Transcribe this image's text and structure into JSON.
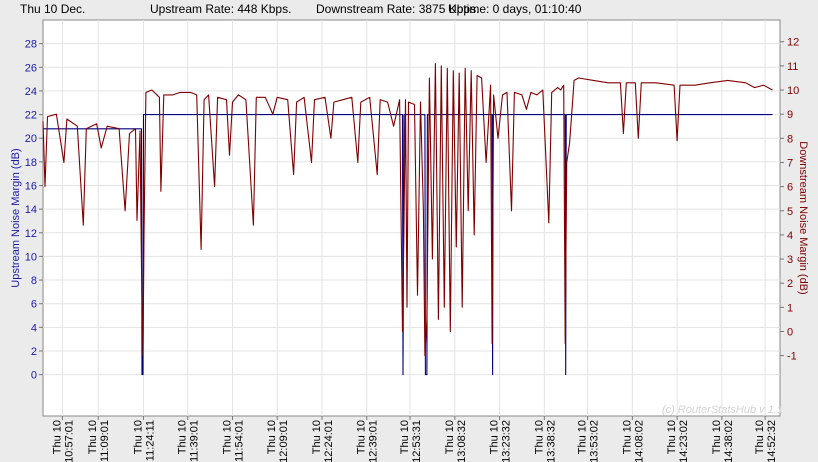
{
  "header": {
    "date": "Thu 10 Dec.",
    "upstream": "Upstream Rate: 448 Kbps.",
    "downstream": "Downstream Rate: 3875 Kbps.",
    "uptime": "Uptime: 0 days, 01:10:40"
  },
  "watermark": "(c) RouterStatsHub v 1.1",
  "colors": {
    "upstream": "#000080",
    "downstream": "#800000",
    "axis_left": "#1a1aa8",
    "axis_right": "#800000"
  },
  "chart_data": {
    "type": "line",
    "ylabel_left": "Upstream Noise Margin (dB)",
    "ylabel_right": "Downstream Noise Margin (dB)",
    "ylim_left": [
      -3.5,
      30
    ],
    "yticks_left": [
      0,
      2,
      4,
      6,
      8,
      10,
      12,
      14,
      16,
      18,
      20,
      22,
      24,
      26,
      28
    ],
    "ylim_right": [
      -3.5,
      12.9
    ],
    "yticks_right": [
      -1,
      0,
      1,
      2,
      3,
      4,
      5,
      6,
      7,
      8,
      9,
      10,
      11,
      12
    ],
    "xlim": [
      "10:50:31",
      "14:57:31"
    ],
    "x_ticks": [
      {
        "day": "Thu 10",
        "time": "10:57:01"
      },
      {
        "day": "Thu 10",
        "time": "11:09:01"
      },
      {
        "day": "Thu 10",
        "time": "11:24:11"
      },
      {
        "day": "Thu 10",
        "time": "11:39:01"
      },
      {
        "day": "Thu 10",
        "time": "11:54:01"
      },
      {
        "day": "Thu 10",
        "time": "12:09:01"
      },
      {
        "day": "Thu 10",
        "time": "12:24:01"
      },
      {
        "day": "Thu 10",
        "time": "12:39:01"
      },
      {
        "day": "Thu 10",
        "time": "12:53:31"
      },
      {
        "day": "Thu 10",
        "time": "13:08:32"
      },
      {
        "day": "Thu 10",
        "time": "13:23:32"
      },
      {
        "day": "Thu 10",
        "time": "13:38:32"
      },
      {
        "day": "Thu 10",
        "time": "13:53:02"
      },
      {
        "day": "Thu 10",
        "time": "14:08:02"
      },
      {
        "day": "Thu 10",
        "time": "14:23:02"
      },
      {
        "day": "Thu 10",
        "time": "14:38:02"
      },
      {
        "day": "Thu 10",
        "time": "14:52:32"
      }
    ],
    "series": [
      {
        "name": "Upstream Noise Margin",
        "axis": "left",
        "points": [
          [
            "10:50:31",
            20.8
          ],
          [
            "11:23:31",
            20.8
          ],
          [
            "11:23:41",
            0
          ],
          [
            "11:24:01",
            0
          ],
          [
            "11:24:11",
            22
          ],
          [
            "12:51:01",
            22
          ],
          [
            "12:51:11",
            0
          ],
          [
            "12:51:31",
            22
          ],
          [
            "12:58:31",
            22
          ],
          [
            "12:58:41",
            0
          ],
          [
            "12:59:11",
            0
          ],
          [
            "12:59:21",
            22
          ],
          [
            "13:21:01",
            22
          ],
          [
            "13:21:11",
            0
          ],
          [
            "13:21:21",
            22
          ],
          [
            "13:45:31",
            22
          ],
          [
            "13:45:41",
            0
          ],
          [
            "13:45:51",
            22
          ],
          [
            "14:55:01",
            22
          ]
        ]
      },
      {
        "name": "Downstream Noise Margin",
        "axis": "right",
        "points": [
          [
            "10:50:31",
            8.7
          ],
          [
            "10:51:11",
            6.0
          ],
          [
            "10:52:01",
            8.9
          ],
          [
            "10:55:01",
            9.0
          ],
          [
            "10:57:31",
            7.0
          ],
          [
            "10:58:31",
            8.8
          ],
          [
            "11:02:01",
            8.5
          ],
          [
            "11:04:01",
            4.4
          ],
          [
            "11:05:01",
            8.4
          ],
          [
            "11:08:31",
            8.6
          ],
          [
            "11:10:01",
            7.6
          ],
          [
            "11:12:01",
            8.5
          ],
          [
            "11:16:01",
            8.4
          ],
          [
            "11:18:01",
            5.0
          ],
          [
            "11:19:31",
            8.2
          ],
          [
            "11:21:31",
            8.4
          ],
          [
            "11:22:01",
            4.6
          ],
          [
            "11:23:01",
            8.3
          ],
          [
            "11:23:31",
            2.6
          ],
          [
            "11:24:01",
            -1.0
          ],
          [
            "11:24:21",
            4.0
          ],
          [
            "11:25:01",
            9.9
          ],
          [
            "11:27:01",
            10.0
          ],
          [
            "11:29:31",
            9.7
          ],
          [
            "11:30:01",
            5.8
          ],
          [
            "11:31:01",
            9.8
          ],
          [
            "11:34:01",
            9.8
          ],
          [
            "11:36:31",
            9.9
          ],
          [
            "11:40:01",
            9.9
          ],
          [
            "11:42:01",
            9.8
          ],
          [
            "11:43:31",
            3.4
          ],
          [
            "11:44:31",
            9.6
          ],
          [
            "11:46:01",
            9.8
          ],
          [
            "11:48:01",
            6.0
          ],
          [
            "11:49:01",
            9.7
          ],
          [
            "11:52:01",
            9.6
          ],
          [
            "11:53:01",
            7.3
          ],
          [
            "11:54:01",
            9.5
          ],
          [
            "11:56:01",
            9.8
          ],
          [
            "11:58:31",
            9.6
          ],
          [
            "12:01:01",
            4.4
          ],
          [
            "12:02:01",
            9.7
          ],
          [
            "12:05:01",
            9.7
          ],
          [
            "12:07:31",
            9.0
          ],
          [
            "12:09:01",
            9.7
          ],
          [
            "12:12:31",
            9.6
          ],
          [
            "12:14:31",
            6.5
          ],
          [
            "12:15:31",
            9.5
          ],
          [
            "12:18:01",
            9.7
          ],
          [
            "12:20:31",
            7.0
          ],
          [
            "12:21:31",
            9.6
          ],
          [
            "12:25:01",
            9.7
          ],
          [
            "12:27:01",
            8.0
          ],
          [
            "12:28:01",
            9.5
          ],
          [
            "12:31:01",
            9.6
          ],
          [
            "12:34:01",
            9.7
          ],
          [
            "12:36:01",
            7.0
          ],
          [
            "12:37:01",
            9.5
          ],
          [
            "12:40:01",
            9.7
          ],
          [
            "12:42:31",
            6.5
          ],
          [
            "12:43:31",
            9.6
          ],
          [
            "12:46:01",
            9.5
          ],
          [
            "12:48:01",
            8.5
          ],
          [
            "12:50:01",
            9.6
          ],
          [
            "12:51:01",
            0.0
          ],
          [
            "12:51:31",
            4.5
          ],
          [
            "12:52:01",
            9.6
          ],
          [
            "12:52:31",
            1.0
          ],
          [
            "12:53:01",
            9.5
          ],
          [
            "12:55:01",
            9.4
          ],
          [
            "12:56:01",
            1.5
          ],
          [
            "12:57:01",
            9.5
          ],
          [
            "12:58:01",
            5.0
          ],
          [
            "12:58:31",
            -1.0
          ],
          [
            "12:59:11",
            0.5
          ],
          [
            "13:00:01",
            10.5
          ],
          [
            "13:01:01",
            3.0
          ],
          [
            "13:02:01",
            11.1
          ],
          [
            "13:03:01",
            0.5
          ],
          [
            "13:04:01",
            11.0
          ],
          [
            "13:05:01",
            1.0
          ],
          [
            "13:06:01",
            10.9
          ],
          [
            "13:07:01",
            0.0
          ],
          [
            "13:08:01",
            10.8
          ],
          [
            "13:09:01",
            3.5
          ],
          [
            "13:10:01",
            10.7
          ],
          [
            "13:11:01",
            1.0
          ],
          [
            "13:12:01",
            10.9
          ],
          [
            "13:13:01",
            5.0
          ],
          [
            "13:14:01",
            10.8
          ],
          [
            "13:15:01",
            4.0
          ],
          [
            "13:16:01",
            10.6
          ],
          [
            "13:17:31",
            10.5
          ],
          [
            "13:19:01",
            7.0
          ],
          [
            "13:20:31",
            10.2
          ],
          [
            "13:21:01",
            -0.5
          ],
          [
            "13:21:31",
            9.8
          ],
          [
            "13:23:01",
            8.0
          ],
          [
            "13:24:31",
            9.8
          ],
          [
            "13:26:01",
            9.9
          ],
          [
            "13:27:31",
            5.0
          ],
          [
            "13:28:31",
            9.9
          ],
          [
            "13:31:01",
            9.8
          ],
          [
            "13:32:31",
            9.2
          ],
          [
            "13:34:01",
            9.9
          ],
          [
            "13:36:01",
            9.8
          ],
          [
            "13:38:01",
            10.0
          ],
          [
            "13:40:01",
            4.5
          ],
          [
            "13:41:01",
            9.9
          ],
          [
            "13:43:01",
            10.1
          ],
          [
            "13:44:01",
            10.0
          ],
          [
            "13:45:01",
            10.2
          ],
          [
            "13:45:31",
            -0.5
          ],
          [
            "13:46:01",
            7.0
          ],
          [
            "13:47:01",
            7.8
          ],
          [
            "13:48:31",
            10.4
          ],
          [
            "13:50:01",
            10.5
          ],
          [
            "13:55:01",
            10.4
          ],
          [
            "14:00:01",
            10.3
          ],
          [
            "14:04:01",
            10.3
          ],
          [
            "14:05:01",
            8.2
          ],
          [
            "14:06:01",
            10.3
          ],
          [
            "14:09:01",
            10.3
          ],
          [
            "14:10:01",
            8.0
          ],
          [
            "14:11:01",
            10.3
          ],
          [
            "14:16:01",
            10.3
          ],
          [
            "14:22:01",
            10.2
          ],
          [
            "14:23:01",
            7.9
          ],
          [
            "14:24:01",
            10.2
          ],
          [
            "14:29:01",
            10.2
          ],
          [
            "14:34:01",
            10.3
          ],
          [
            "14:40:01",
            10.4
          ],
          [
            "14:46:01",
            10.3
          ],
          [
            "14:49:01",
            10.1
          ],
          [
            "14:52:01",
            10.2
          ],
          [
            "14:55:01",
            10.0
          ]
        ]
      }
    ]
  }
}
